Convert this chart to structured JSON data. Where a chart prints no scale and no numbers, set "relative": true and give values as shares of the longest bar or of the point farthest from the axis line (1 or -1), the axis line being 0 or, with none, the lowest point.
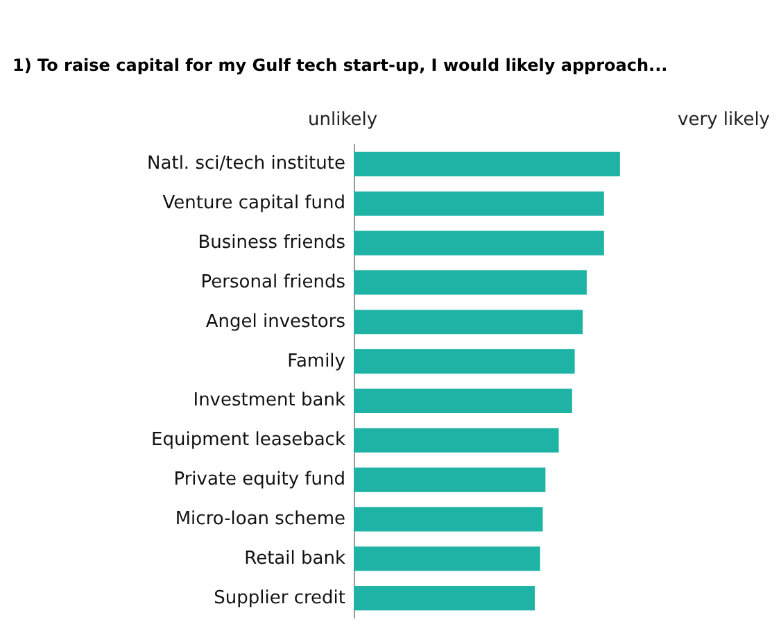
{
  "chart_data": {
    "type": "bar",
    "orientation": "horizontal",
    "relative": true,
    "title": "1) To raise capital for my Gulf tech start-up, I would likely approach...",
    "categories": [
      "Natl. sci/tech institute",
      "Venture capital fund",
      "Business friends",
      "Personal friends",
      "Angel investors",
      "Family",
      "Investment bank",
      "Equipment leaseback",
      "Private equity fund",
      "Micro-loan scheme",
      "Retail bank",
      "Supplier credit"
    ],
    "values": [
      1,
      0.94,
      0.94,
      0.875,
      0.86,
      0.83,
      0.82,
      0.77,
      0.72,
      0.71,
      0.7,
      0.68
    ],
    "color": "#1fb3a6",
    "annotations": [
      "unlikely",
      "very likely"
    ]
  }
}
